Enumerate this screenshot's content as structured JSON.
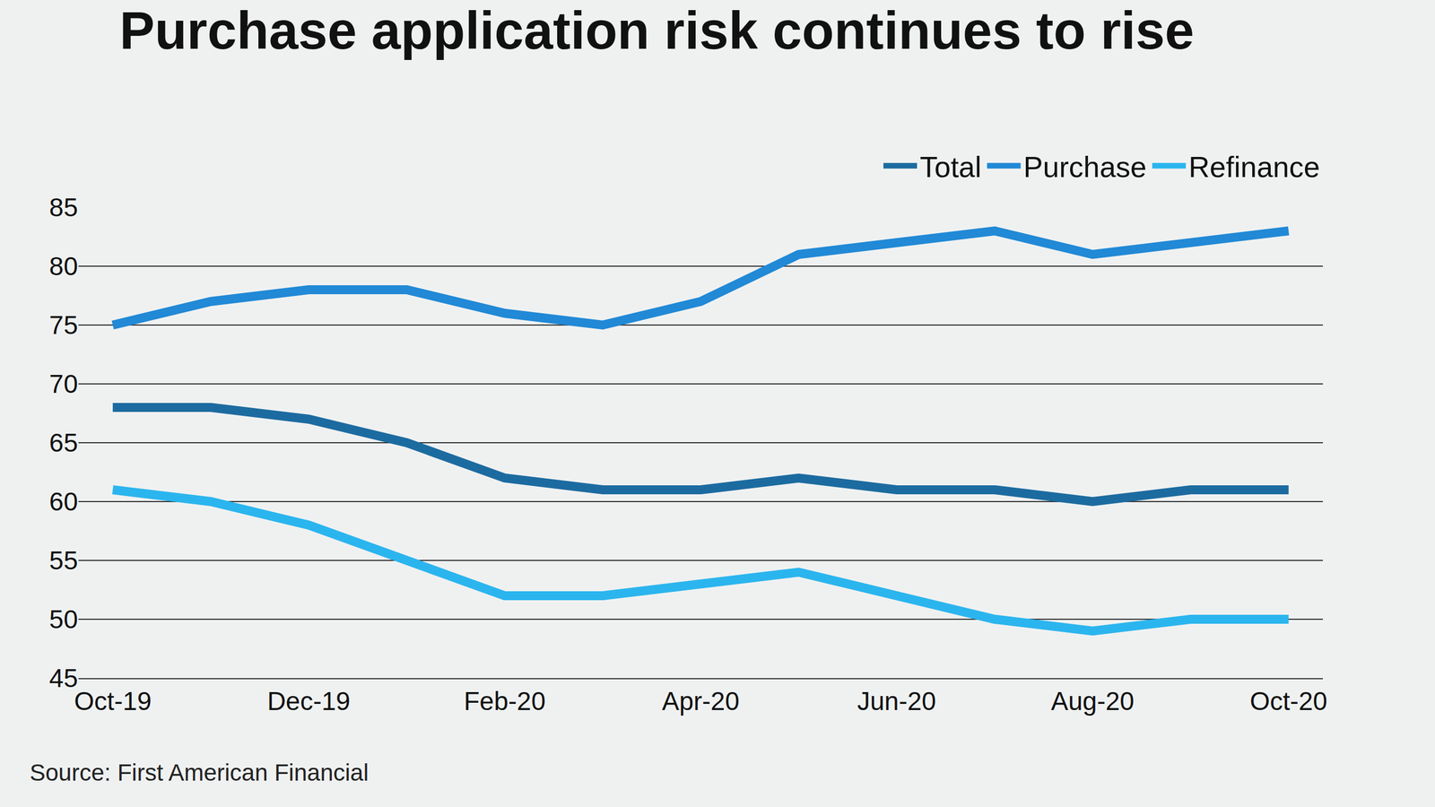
{
  "chart_data": {
    "type": "line",
    "title": "Purchase application risk continues to rise",
    "source": "Source: First American Financial",
    "categories": [
      "Oct-19",
      null,
      "Dec-19",
      null,
      "Feb-20",
      null,
      "Apr-20",
      null,
      "Jun-20",
      null,
      "Aug-20",
      null,
      "Oct-20"
    ],
    "series": [
      {
        "name": "Total",
        "color": "#1c6ba0",
        "values": [
          68,
          68,
          67,
          65,
          62,
          61,
          61,
          62,
          61,
          61,
          60,
          61,
          61
        ]
      },
      {
        "name": "Purchase",
        "color": "#2189d6",
        "values": [
          75,
          77,
          78,
          78,
          76,
          75,
          77,
          81,
          82,
          83,
          81,
          82,
          83
        ]
      },
      {
        "name": "Refinance",
        "color": "#2bb5ee",
        "values": [
          61,
          60,
          58,
          55,
          52,
          52,
          53,
          54,
          52,
          50,
          49,
          50,
          50
        ]
      }
    ],
    "ylim": [
      45,
      85
    ],
    "yticks": [
      45,
      50,
      55,
      60,
      65,
      70,
      75,
      80,
      85
    ],
    "grid": true,
    "legend": "top-right"
  }
}
